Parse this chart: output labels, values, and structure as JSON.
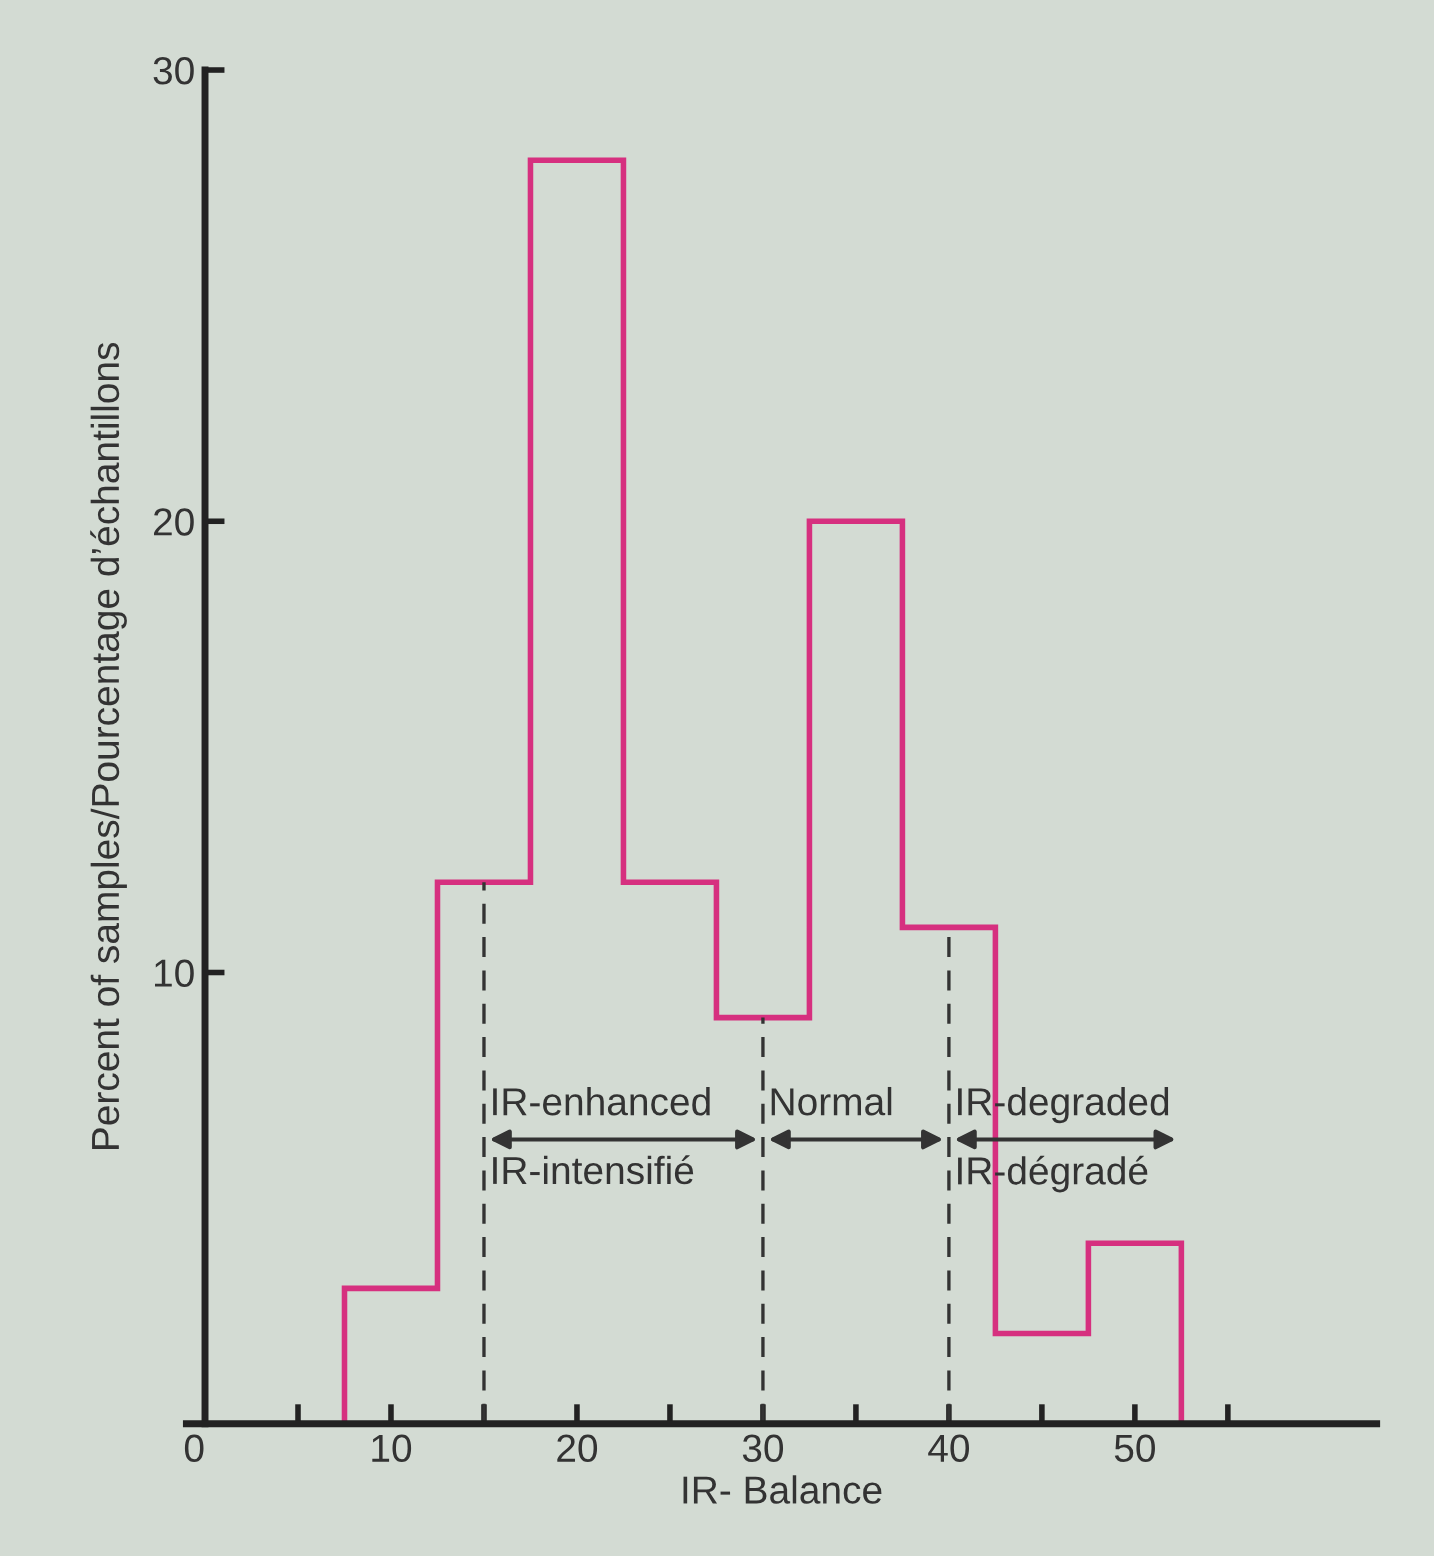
{
  "chart_data": {
    "type": "histogram",
    "xlabel": "IR- Balance",
    "ylabel": "Percent of samples/Pourcentage d’échantillons",
    "bins": [
      7.5,
      12.5,
      17.5,
      22.5,
      27.5,
      32.5,
      37.5,
      42.5,
      47.5,
      52.5
    ],
    "values": [
      3,
      12,
      28,
      12,
      9,
      20,
      11,
      2,
      4
    ],
    "color": "#d6307f",
    "xlim": [
      -1,
      63
    ],
    "ylim": [
      0,
      30
    ],
    "xticks": [
      {
        "value": 0,
        "label": "0"
      },
      {
        "value": 5,
        "label": null
      },
      10,
      {
        "value": 15,
        "label": null
      },
      20,
      {
        "value": 25,
        "label": null
      },
      30,
      {
        "value": 35,
        "label": null
      },
      40,
      {
        "value": 45,
        "label": null
      },
      50,
      {
        "value": 55,
        "label": null
      }
    ],
    "yticks": [
      10,
      20,
      30
    ],
    "ref_lines": [
      {
        "axis": "x",
        "value": 15,
        "line_style": "dashed",
        "color": "#333333"
      },
      {
        "axis": "x",
        "value": 30,
        "line_style": "dashed",
        "color": "#333333"
      },
      {
        "axis": "x",
        "value": 40,
        "line_style": "dashed",
        "color": "#333333"
      }
    ],
    "annotations": [
      "IR-enhanced",
      "IR-intensifié",
      "Normal",
      "IR-degraded",
      "IR-dégradé"
    ],
    "grid": false
  }
}
